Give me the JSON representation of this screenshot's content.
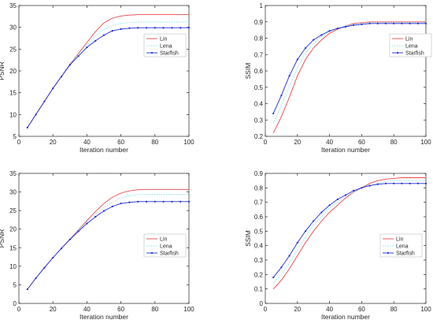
{
  "colors": {
    "Lin": "#e8474a",
    "Lena": "#7fe3ea",
    "Starfish": "#1f2bd1",
    "axis": "#262626",
    "grid_bg": "#ffffff"
  },
  "chart_data": [
    {
      "type": "line",
      "xlabel": "Iteration number",
      "ylabel": "PSNR",
      "xlim": [
        0,
        100
      ],
      "ylim": [
        5,
        35
      ],
      "xticks": [
        0,
        20,
        40,
        60,
        80,
        100
      ],
      "yticks": [
        5,
        10,
        15,
        20,
        25,
        30,
        35
      ],
      "grid": false,
      "legend": "top-right",
      "x": [
        5,
        10,
        15,
        20,
        25,
        30,
        35,
        40,
        45,
        50,
        55,
        60,
        65,
        70,
        75,
        80,
        85,
        90,
        95,
        100
      ],
      "series": [
        {
          "name": "Lin",
          "values": [
            7,
            10,
            13,
            16,
            18.7,
            21.5,
            24,
            26.5,
            29,
            31,
            32.1,
            32.6,
            32.8,
            32.9,
            32.9,
            32.9,
            32.9,
            32.9,
            32.9,
            32.9
          ]
        },
        {
          "name": "Lena",
          "values": [
            7,
            10,
            13,
            16,
            18.7,
            21.5,
            23.8,
            26,
            28,
            29.5,
            30.4,
            30.9,
            31.1,
            31.2,
            31.2,
            31.2,
            31.2,
            31.2,
            31.2,
            31.2
          ]
        },
        {
          "name": "Starfish",
          "values": [
            7,
            10,
            13,
            16,
            18.7,
            21.4,
            23.4,
            25.4,
            26.9,
            28.2,
            29.2,
            29.6,
            29.8,
            29.9,
            29.9,
            29.9,
            29.9,
            29.9,
            29.9,
            29.9
          ]
        }
      ]
    },
    {
      "type": "line",
      "xlabel": "Iteration number",
      "ylabel": "SSIM",
      "xlim": [
        0,
        100
      ],
      "ylim": [
        0.2,
        1
      ],
      "xticks": [
        0,
        20,
        40,
        60,
        80,
        100
      ],
      "yticks": [
        0.2,
        0.3,
        0.4,
        0.5,
        0.6,
        0.7,
        0.8,
        0.9,
        1
      ],
      "ytick_labels": [
        "0.2",
        "0.3",
        "0.4",
        "0.5",
        "0.6",
        "0.7",
        "0.8",
        "0.9",
        "1"
      ],
      "grid": false,
      "legend": "top-right",
      "x": [
        5,
        10,
        15,
        20,
        25,
        30,
        35,
        40,
        45,
        50,
        55,
        60,
        65,
        70,
        75,
        80,
        85,
        90,
        95,
        100
      ],
      "series": [
        {
          "name": "Lin",
          "values": [
            0.22,
            0.32,
            0.44,
            0.57,
            0.67,
            0.74,
            0.79,
            0.83,
            0.855,
            0.875,
            0.89,
            0.895,
            0.9,
            0.9,
            0.9,
            0.9,
            0.9,
            0.9,
            0.9,
            0.9
          ]
        },
        {
          "name": "Lena",
          "values": [
            0.28,
            0.39,
            0.51,
            0.62,
            0.71,
            0.77,
            0.81,
            0.84,
            0.86,
            0.875,
            0.885,
            0.89,
            0.895,
            0.895,
            0.895,
            0.895,
            0.895,
            0.895,
            0.895,
            0.895
          ]
        },
        {
          "name": "Starfish",
          "values": [
            0.34,
            0.45,
            0.57,
            0.67,
            0.74,
            0.79,
            0.82,
            0.845,
            0.86,
            0.87,
            0.88,
            0.885,
            0.89,
            0.89,
            0.89,
            0.89,
            0.89,
            0.89,
            0.89,
            0.89
          ]
        }
      ]
    },
    {
      "type": "line",
      "xlabel": "Iteration number",
      "ylabel": "PSNR",
      "xlim": [
        0,
        100
      ],
      "ylim": [
        0,
        35
      ],
      "xticks": [
        0,
        20,
        40,
        60,
        80,
        100
      ],
      "yticks": [
        0,
        5,
        10,
        15,
        20,
        25,
        30,
        35
      ],
      "grid": false,
      "legend": "right",
      "x": [
        5,
        10,
        15,
        20,
        25,
        30,
        35,
        40,
        45,
        50,
        55,
        60,
        65,
        70,
        75,
        80,
        85,
        90,
        95,
        100
      ],
      "series": [
        {
          "name": "Lin",
          "values": [
            3.8,
            6.8,
            9.6,
            12.3,
            14.8,
            17.3,
            19.8,
            22.3,
            24.7,
            26.9,
            28.6,
            29.7,
            30.3,
            30.6,
            30.7,
            30.7,
            30.7,
            30.7,
            30.7,
            30.7
          ]
        },
        {
          "name": "Lena",
          "values": [
            3.8,
            6.8,
            9.6,
            12.3,
            14.8,
            17.3,
            19.7,
            22,
            24,
            25.8,
            27.3,
            28.4,
            29,
            29.3,
            29.4,
            29.4,
            29.4,
            29.4,
            29.4,
            29.4
          ]
        },
        {
          "name": "Starfish",
          "values": [
            3.8,
            6.8,
            9.6,
            12.3,
            14.8,
            17.2,
            19.4,
            21.5,
            23.3,
            24.9,
            26.1,
            26.9,
            27.2,
            27.4,
            27.4,
            27.4,
            27.4,
            27.4,
            27.4,
            27.4
          ]
        }
      ]
    },
    {
      "type": "line",
      "xlabel": "Iteration number",
      "ylabel": "SSIM",
      "xlim": [
        0,
        100
      ],
      "ylim": [
        0,
        0.9
      ],
      "xticks": [
        0,
        20,
        40,
        60,
        80,
        100
      ],
      "yticks": [
        0,
        0.1,
        0.2,
        0.3,
        0.4,
        0.5,
        0.6,
        0.7,
        0.8,
        0.9
      ],
      "ytick_labels": [
        "0",
        "0.1",
        "0.2",
        "0.3",
        "0.4",
        "0.5",
        "0.6",
        "0.7",
        "0.8",
        "0.9"
      ],
      "grid": false,
      "legend": "right",
      "x": [
        5,
        10,
        15,
        20,
        25,
        30,
        35,
        40,
        45,
        50,
        55,
        60,
        65,
        70,
        75,
        80,
        85,
        90,
        95,
        100
      ],
      "series": [
        {
          "name": "Lin",
          "values": [
            0.1,
            0.16,
            0.24,
            0.33,
            0.42,
            0.5,
            0.57,
            0.63,
            0.68,
            0.73,
            0.77,
            0.8,
            0.83,
            0.85,
            0.86,
            0.865,
            0.87,
            0.87,
            0.87,
            0.87
          ]
        },
        {
          "name": "Lena",
          "values": [
            0.14,
            0.2,
            0.28,
            0.37,
            0.46,
            0.54,
            0.6,
            0.66,
            0.7,
            0.74,
            0.77,
            0.8,
            0.82,
            0.83,
            0.845,
            0.85,
            0.85,
            0.85,
            0.85,
            0.85
          ]
        },
        {
          "name": "Starfish",
          "values": [
            0.18,
            0.25,
            0.33,
            0.42,
            0.5,
            0.57,
            0.63,
            0.68,
            0.72,
            0.75,
            0.78,
            0.8,
            0.815,
            0.825,
            0.83,
            0.83,
            0.83,
            0.83,
            0.83,
            0.83
          ]
        }
      ]
    }
  ]
}
